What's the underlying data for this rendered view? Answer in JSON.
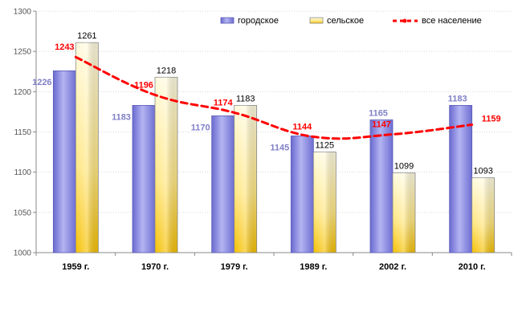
{
  "chart_data": {
    "type": "bar",
    "title": "",
    "xlabel": "",
    "ylabel": "",
    "categories": [
      "1959 г.",
      "1970 г.",
      "1979 г.",
      "1989 г.",
      "2002 г.",
      "2010 г."
    ],
    "ylim": [
      1000,
      1300
    ],
    "yticks": [
      1000,
      1050,
      1100,
      1150,
      1200,
      1250,
      1300
    ],
    "grid": true,
    "legend_position": "top-right",
    "series": [
      {
        "name": "городское",
        "kind": "bar",
        "values": [
          1226,
          1183,
          1170,
          1145,
          1165,
          1183
        ],
        "color": "#8f8fe0",
        "label_color": "#8080c8"
      },
      {
        "name": "сельское",
        "kind": "bar",
        "values": [
          1261,
          1218,
          1183,
          1125,
          1099,
          1093
        ],
        "color": "#fff0a0",
        "label_color": "#000000"
      },
      {
        "name": "все население",
        "kind": "line",
        "style": "dashed",
        "values": [
          1243,
          1196,
          1174,
          1144,
          1147,
          1159
        ],
        "color": "#ff0000",
        "label_color": "#ff0000"
      }
    ]
  }
}
